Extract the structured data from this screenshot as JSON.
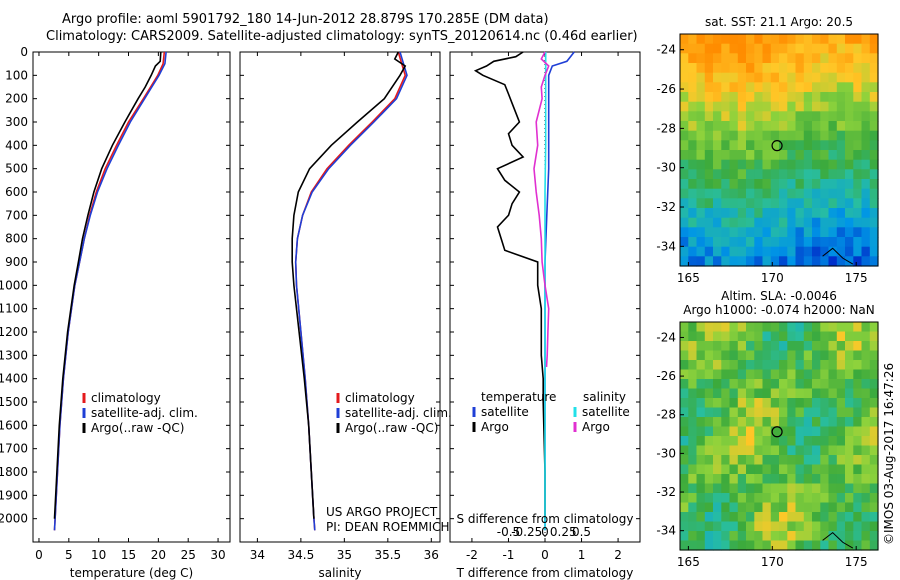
{
  "title_line1": "Argo profile: aoml 5901792_180 14-Jun-2012 28.879S 170.285E (DM data)",
  "title_line2": "Climatology: CARS2009. Satellite-adjusted climatology: synTS_20120614.nc (0.46d earlier)",
  "sst_title": "sat. SST: 21.1  Argo: 20.5",
  "sla_title1": "Altim. SLA: -0.0046",
  "sla_title2": "Argo h1000: -0.074 h2000: NaN",
  "credit": "©IMOS 03-Aug-2017 16:47:26",
  "project_line1": "US ARGO PROJECT",
  "project_line2": "PI: DEAN ROEMMICH",
  "colors": {
    "climatology": "#e41a1c",
    "satellite": "#1f3fd6",
    "argo": "#000000",
    "satellite_s": "#22e0e8",
    "argo_s": "#e030d0"
  },
  "chart_data": [
    {
      "type": "line",
      "panel": "temperature",
      "xlabel": "temperature (deg C)",
      "ylabel": "",
      "xlim": [
        -1,
        32
      ],
      "ylim": [
        0,
        2100
      ],
      "xticks": [
        0,
        5,
        10,
        15,
        20,
        25,
        30
      ],
      "yticks": [
        0,
        100,
        200,
        300,
        400,
        500,
        600,
        700,
        800,
        900,
        1000,
        1100,
        1200,
        1300,
        1400,
        1500,
        1600,
        1700,
        1800,
        1900,
        2000
      ],
      "legend": [
        "climatology",
        "satellite-adj. clim.",
        "Argo(..raw -QC)"
      ],
      "series": [
        {
          "name": "climatology",
          "color": "#e41a1c",
          "depth": [
            0,
            50,
            100,
            150,
            200,
            300,
            400,
            500,
            600,
            700,
            800,
            900,
            1000,
            1200,
            1400,
            1600,
            1800,
            2000,
            2050
          ],
          "values": [
            21.0,
            20.8,
            19.9,
            18.7,
            17.5,
            15.0,
            13.0,
            11.1,
            9.6,
            8.5,
            7.6,
            6.8,
            6.0,
            4.9,
            4.1,
            3.5,
            3.1,
            2.7,
            2.6
          ]
        },
        {
          "name": "satellite",
          "color": "#1f3fd6",
          "depth": [
            0,
            50,
            100,
            150,
            200,
            300,
            400,
            500,
            600,
            700,
            800,
            900,
            1000,
            1200,
            1400,
            1600,
            1800,
            2000,
            2050
          ],
          "values": [
            21.3,
            21.1,
            20.1,
            18.9,
            17.7,
            15.3,
            13.3,
            11.4,
            9.8,
            8.6,
            7.6,
            6.8,
            6.0,
            4.9,
            4.1,
            3.5,
            3.1,
            2.7,
            2.6
          ]
        },
        {
          "name": "argo",
          "color": "#000000",
          "depth": [
            0,
            40,
            60,
            100,
            150,
            200,
            300,
            400,
            500,
            600,
            700,
            800,
            900,
            1000,
            1200,
            1400,
            1600,
            1800,
            2000
          ],
          "values": [
            20.4,
            20.3,
            19.5,
            18.8,
            17.8,
            16.6,
            14.4,
            12.3,
            10.5,
            9.2,
            8.2,
            7.3,
            6.6,
            5.9,
            4.8,
            4.0,
            3.4,
            3.0,
            2.6
          ]
        }
      ]
    },
    {
      "type": "line",
      "panel": "salinity",
      "xlabel": "salinity",
      "xlim": [
        33.8,
        36.1
      ],
      "ylim": [
        0,
        2100
      ],
      "xticks": [
        34,
        34.5,
        35,
        35.5,
        36
      ],
      "legend": [
        "climatology",
        "satellite-adj. clim.",
        "Argo(..raw -QC)"
      ],
      "series": [
        {
          "name": "climatology",
          "color": "#e41a1c",
          "depth": [
            0,
            50,
            100,
            200,
            300,
            400,
            500,
            600,
            700,
            800,
            900,
            1000,
            1200,
            1400,
            1600,
            1800,
            2000,
            2050
          ],
          "values": [
            35.62,
            35.66,
            35.7,
            35.58,
            35.32,
            35.05,
            34.8,
            34.62,
            34.52,
            34.46,
            34.44,
            34.45,
            34.5,
            34.55,
            34.59,
            34.62,
            34.65,
            34.66
          ]
        },
        {
          "name": "satellite",
          "color": "#1f3fd6",
          "depth": [
            0,
            50,
            100,
            200,
            300,
            400,
            500,
            600,
            700,
            800,
            900,
            1000,
            1200,
            1400,
            1600,
            1800,
            2000,
            2050
          ],
          "values": [
            35.64,
            35.68,
            35.72,
            35.6,
            35.34,
            35.07,
            34.82,
            34.63,
            34.52,
            34.46,
            34.44,
            34.45,
            34.5,
            34.55,
            34.59,
            34.62,
            34.65,
            34.66
          ]
        },
        {
          "name": "argo",
          "color": "#000000",
          "depth": [
            0,
            30,
            60,
            100,
            200,
            300,
            400,
            500,
            600,
            700,
            800,
            900,
            1000,
            1200,
            1400,
            1600,
            1800,
            2000
          ],
          "values": [
            35.62,
            35.58,
            35.7,
            35.64,
            35.46,
            35.15,
            34.85,
            34.6,
            34.47,
            34.42,
            34.4,
            34.4,
            34.42,
            34.48,
            34.54,
            34.59,
            34.62,
            34.65
          ]
        }
      ]
    },
    {
      "type": "line",
      "panel": "difference",
      "xlabel": "T difference from climatology",
      "xlabel_top": "S difference from climatology",
      "xlim_t": [
        -2.6,
        2.6
      ],
      "xticks_t": [
        -2,
        -1,
        0,
        1,
        2
      ],
      "xticks_s": [
        -0.5,
        -0.25,
        0,
        0.25,
        0.5
      ],
      "xticklabels_s": [
        "-0.5",
        "-0.25",
        "0",
        "0.25",
        "0.5"
      ],
      "legend_temperature_title": "temperature",
      "legend_salinity_title": "salinity",
      "legend_temperature": [
        "satellite",
        "Argo"
      ],
      "legend_salinity": [
        "satellite",
        "Argo"
      ],
      "series": [
        {
          "name": "temperature satellite",
          "color": "#1f3fd6",
          "depth": [
            0,
            40,
            60,
            100,
            200,
            300,
            500,
            700,
            900,
            1100,
            1200,
            1300,
            1400,
            1500,
            1800,
            2050
          ],
          "values": [
            0.8,
            0.6,
            0.2,
            0.1,
            0.1,
            0.1,
            0.1,
            0.05,
            0.0,
            0.0,
            0.0,
            0.0,
            0.0,
            0.0,
            0.0,
            0.0
          ]
        },
        {
          "name": "temperature Argo",
          "color": "#000000",
          "depth": [
            0,
            20,
            40,
            60,
            80,
            100,
            140,
            180,
            220,
            300,
            350,
            400,
            450,
            500,
            550,
            600,
            650,
            700,
            750,
            800,
            850,
            900,
            1000,
            1100,
            1200,
            1300,
            1400,
            1500,
            1800,
            2000
          ],
          "values": [
            -0.6,
            -0.8,
            -1.4,
            -1.6,
            -1.9,
            -1.7,
            -1.1,
            -1.0,
            -0.9,
            -0.7,
            -1.0,
            -0.9,
            -0.6,
            -1.3,
            -1.1,
            -0.7,
            -0.9,
            -1.0,
            -1.3,
            -1.2,
            -1.1,
            -0.2,
            -0.2,
            -0.1,
            -0.1,
            -0.1,
            -0.05,
            -0.05,
            0.0,
            0.0
          ]
        },
        {
          "name": "salinity satellite",
          "color": "#22e0e8",
          "depth": [
            0,
            50,
            100,
            200,
            400,
            600,
            800,
            1000,
            1400,
            1800,
            2050
          ],
          "values": [
            0.01,
            0.01,
            0.01,
            0.01,
            0.01,
            0.0,
            0.0,
            0.0,
            0.0,
            0.0,
            0.0
          ]
        },
        {
          "name": "salinity Argo",
          "color": "#e030d0",
          "depth": [
            0,
            30,
            60,
            100,
            150,
            200,
            300,
            400,
            500,
            600,
            700,
            800,
            900,
            1000,
            1100,
            1200,
            1300,
            1350
          ],
          "values": [
            0.0,
            -0.05,
            0.05,
            0.0,
            -0.05,
            -0.04,
            -0.12,
            -0.1,
            -0.15,
            -0.12,
            -0.08,
            -0.05,
            -0.04,
            0.0,
            0.05,
            0.04,
            0.03,
            0.02
          ]
        }
      ]
    },
    {
      "type": "heatmap",
      "panel": "sst_map",
      "title": "sat. SST: 21.1  Argo: 20.5",
      "xlim": [
        164.5,
        176.3
      ],
      "ylim": [
        -35,
        -23.2
      ],
      "xticks": [
        165,
        170,
        175
      ],
      "yticks": [
        -24,
        -26,
        -28,
        -30,
        -32,
        -34
      ],
      "argo_position": [
        170.285,
        -28.879
      ]
    },
    {
      "type": "heatmap",
      "panel": "sla_map",
      "title": "Altim. SLA: -0.0046",
      "xlim": [
        164.5,
        176.3
      ],
      "ylim": [
        -35,
        -23.2
      ],
      "xticks": [
        165,
        170,
        175
      ],
      "yticks": [
        -24,
        -26,
        -28,
        -30,
        -32,
        -34
      ],
      "argo_position": [
        170.285,
        -28.879
      ]
    }
  ]
}
